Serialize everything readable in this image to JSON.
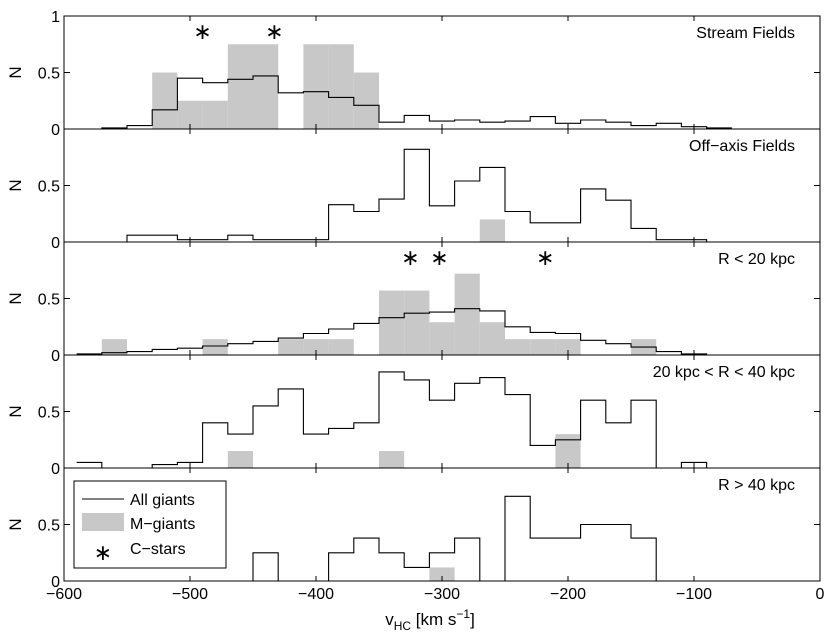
{
  "chart_data": {
    "type": "histogram-stack",
    "xlim": [
      -600,
      0
    ],
    "xticks": [
      -600,
      -500,
      -400,
      -300,
      -200,
      -100,
      0
    ],
    "xtick_labels": [
      "−600",
      "−500",
      "−400",
      "−300",
      "−200",
      "−100",
      "0"
    ],
    "xlabel": {
      "main": "v",
      "sub": "HC",
      "units_before": " [km s",
      "sup": "−1",
      "units_after": "]"
    },
    "ylabel": "N",
    "bin_edges": [
      -590,
      -570,
      -550,
      -530,
      -510,
      -490,
      -470,
      -450,
      -430,
      -410,
      -390,
      -370,
      -350,
      -330,
      -310,
      -290,
      -270,
      -250,
      -230,
      -210,
      -190,
      -170,
      -150,
      -130,
      -110,
      -90,
      -70
    ],
    "colors": {
      "all_line": "#000000",
      "mgiant_fill": "#c8c8c8",
      "axis": "#000000"
    },
    "legend": {
      "position": "lower-left-of-bottom-panel",
      "entries": [
        "All giants",
        "M−giants",
        "C−stars"
      ]
    },
    "panels": [
      {
        "title": "Stream Fields",
        "ylim": [
          0,
          1
        ],
        "yticks": [
          0,
          0.5,
          1
        ],
        "ytick_labels": [
          "0",
          "0.5",
          "1"
        ],
        "all_giants": [
          0.0,
          0.01,
          0.03,
          0.17,
          0.45,
          0.41,
          0.44,
          0.47,
          0.32,
          0.33,
          0.28,
          0.21,
          0.06,
          0.12,
          0.07,
          0.08,
          0.06,
          0.07,
          0.11,
          0.05,
          0.08,
          0.06,
          0.03,
          0.05,
          0.02,
          0.01
        ],
        "m_giants": [
          0,
          0,
          0,
          0.5,
          0.25,
          0.25,
          0.75,
          0.75,
          0,
          0.75,
          0.75,
          0.5,
          0,
          0,
          0,
          0,
          0,
          0,
          0,
          0,
          0,
          0,
          0,
          0,
          0,
          0
        ],
        "c_stars": [
          -490,
          -433
        ]
      },
      {
        "title": "Off−axis Fields",
        "ylim": [
          0,
          1
        ],
        "yticks": [
          0,
          0.5
        ],
        "ytick_labels": [
          "0",
          "0.5"
        ],
        "all_giants": [
          0,
          0,
          0.06,
          0.06,
          0.02,
          0.02,
          0.06,
          0.02,
          0.02,
          0.02,
          0.33,
          0.27,
          0.38,
          0.82,
          0.32,
          0.54,
          0.66,
          0.27,
          0.17,
          0.17,
          0.47,
          0.37,
          0.12,
          0.02,
          0.02,
          0
        ],
        "m_giants": [
          0,
          0,
          0,
          0,
          0,
          0,
          0,
          0,
          0,
          0,
          0,
          0,
          0,
          0,
          0,
          0,
          0.2,
          0,
          0,
          0,
          0,
          0,
          0,
          0,
          0,
          0
        ],
        "c_stars": []
      },
      {
        "title": "R < 20 kpc",
        "ylim": [
          0,
          1
        ],
        "yticks": [
          0,
          0.5
        ],
        "ytick_labels": [
          "0",
          "0.5"
        ],
        "all_giants": [
          0.01,
          0.02,
          0.03,
          0.05,
          0.06,
          0.08,
          0.1,
          0.12,
          0.15,
          0.19,
          0.23,
          0.28,
          0.33,
          0.37,
          0.38,
          0.41,
          0.39,
          0.25,
          0.2,
          0.19,
          0.13,
          0.1,
          0.07,
          0.03,
          0.01,
          0
        ],
        "m_giants": [
          0,
          0.14,
          0,
          0,
          0,
          0.14,
          0,
          0,
          0.14,
          0.14,
          0.14,
          0,
          0.57,
          0.57,
          0.29,
          0.72,
          0.29,
          0.14,
          0.14,
          0.14,
          0,
          0,
          0.14,
          0,
          0,
          0
        ],
        "c_stars": [
          -325,
          -302,
          -218
        ]
      },
      {
        "title": "20 kpc < R < 40 kpc",
        "ylim": [
          0,
          1
        ],
        "yticks": [
          0,
          0.5
        ],
        "ytick_labels": [
          "0",
          "0.5"
        ],
        "all_giants": [
          0.05,
          0,
          0,
          0.03,
          0.05,
          0.4,
          0.3,
          0.55,
          0.7,
          0.3,
          0.35,
          0.4,
          0.85,
          0.78,
          0.6,
          0.75,
          0.8,
          0.65,
          0.2,
          0.25,
          0.6,
          0.4,
          0.6,
          0,
          0.05,
          0
        ],
        "m_giants": [
          0,
          0,
          0,
          0,
          0,
          0,
          0.15,
          0,
          0,
          0,
          0,
          0,
          0.15,
          0,
          0,
          0,
          0,
          0,
          0,
          0.3,
          0,
          0,
          0,
          0,
          0,
          0
        ],
        "c_stars": []
      },
      {
        "title": "R > 40 kpc",
        "ylim": [
          0,
          1
        ],
        "yticks": [
          0,
          0.5
        ],
        "ytick_labels": [
          "0",
          "0.5"
        ],
        "all_giants": [
          0,
          0,
          0,
          0,
          0,
          0,
          0,
          0.25,
          0,
          0,
          0.25,
          0.38,
          0.25,
          0.12,
          0.25,
          0.38,
          0,
          0.75,
          0.38,
          0.38,
          0.5,
          0.5,
          0.38,
          0,
          0,
          0
        ],
        "m_giants": [
          0,
          0,
          0,
          0,
          0,
          0,
          0,
          0,
          0,
          0,
          0,
          0,
          0,
          0,
          0.12,
          0,
          0,
          0,
          0,
          0,
          0,
          0,
          0,
          0,
          0,
          0
        ],
        "c_stars": []
      }
    ]
  }
}
